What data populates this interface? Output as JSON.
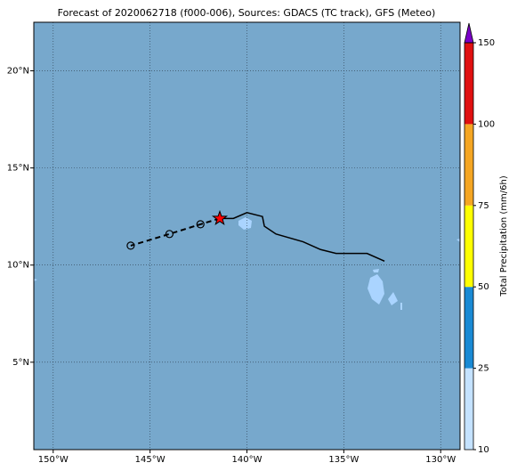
{
  "chart_data": {
    "type": "map",
    "title": "Forecast of 2020062718 (f000-006), Sources: GDACS (TC track), GFS (Meteo)",
    "ocean_color": "#77a8cc",
    "grid": true,
    "xlim": [
      -151,
      -129
    ],
    "ylim": [
      0.5,
      22.5
    ],
    "xticks": [
      {
        "value": -150,
        "label": "150°W"
      },
      {
        "value": -145,
        "label": "145°W"
      },
      {
        "value": -140,
        "label": "140°W"
      },
      {
        "value": -135,
        "label": "135°W"
      },
      {
        "value": -130,
        "label": "130°W"
      }
    ],
    "yticks": [
      {
        "value": 5,
        "label": "5°N"
      },
      {
        "value": 10,
        "label": "10°N"
      },
      {
        "value": 15,
        "label": "15°N"
      },
      {
        "value": 20,
        "label": "20°N"
      }
    ],
    "track": {
      "color": "#000000",
      "current_color": "#ff0000",
      "observed": {
        "lon": [
          -132.9,
          -133.8,
          -135.4,
          -136.2,
          -137.1,
          -138.5,
          -139.1,
          -139.2,
          -140.0,
          -140.7,
          -141.4
        ],
        "lat": [
          10.2,
          10.6,
          10.6,
          10.8,
          11.2,
          11.6,
          12.0,
          12.5,
          12.7,
          12.4,
          12.4
        ]
      },
      "current": {
        "lon": -141.4,
        "lat": 12.4
      },
      "forecast": {
        "lon": [
          -142.4,
          -144.0,
          -146.0
        ],
        "lat": [
          12.1,
          11.6,
          11.0
        ]
      }
    },
    "colorbar": {
      "label": "Total Precipitation (mm/6h)",
      "ticks": [
        10,
        25,
        50,
        75,
        100,
        150
      ],
      "colors": [
        "#c4e2ff",
        "#1a8ad4",
        "#ffff00",
        "#f5a623",
        "#e01010"
      ],
      "extend_color": "#7b00c8"
    }
  }
}
